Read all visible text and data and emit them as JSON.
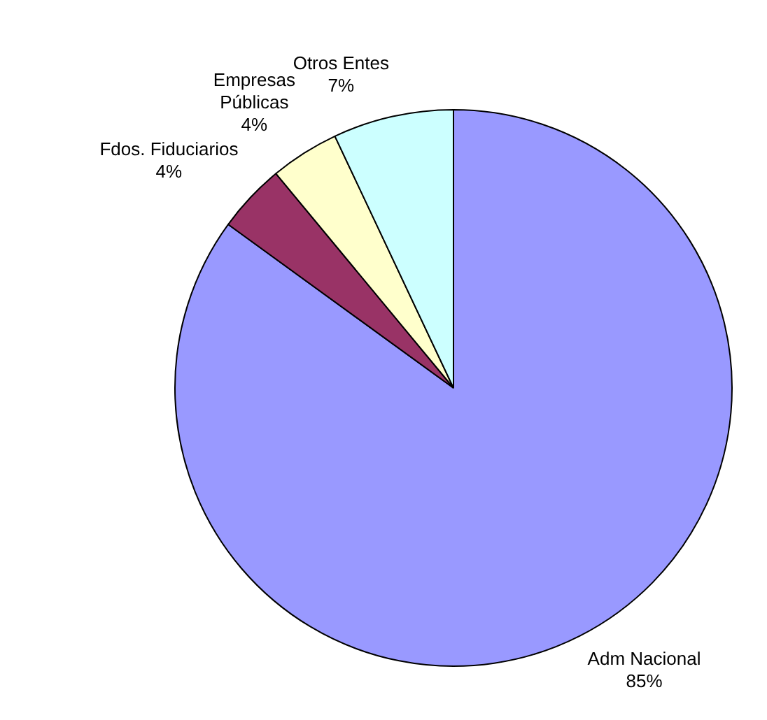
{
  "chart_data": {
    "type": "pie",
    "categories": [
      "Adm Nacional",
      "Fdos. Fiduciarios",
      "Empresas Públicas",
      "Otros Entes"
    ],
    "values": [
      85,
      4,
      4,
      7
    ],
    "value_labels": [
      "85%",
      "4%",
      "4%",
      "7%"
    ],
    "colors": [
      "#9999ff",
      "#993366",
      "#ffffcc",
      "#ccffff"
    ],
    "legend": false
  }
}
